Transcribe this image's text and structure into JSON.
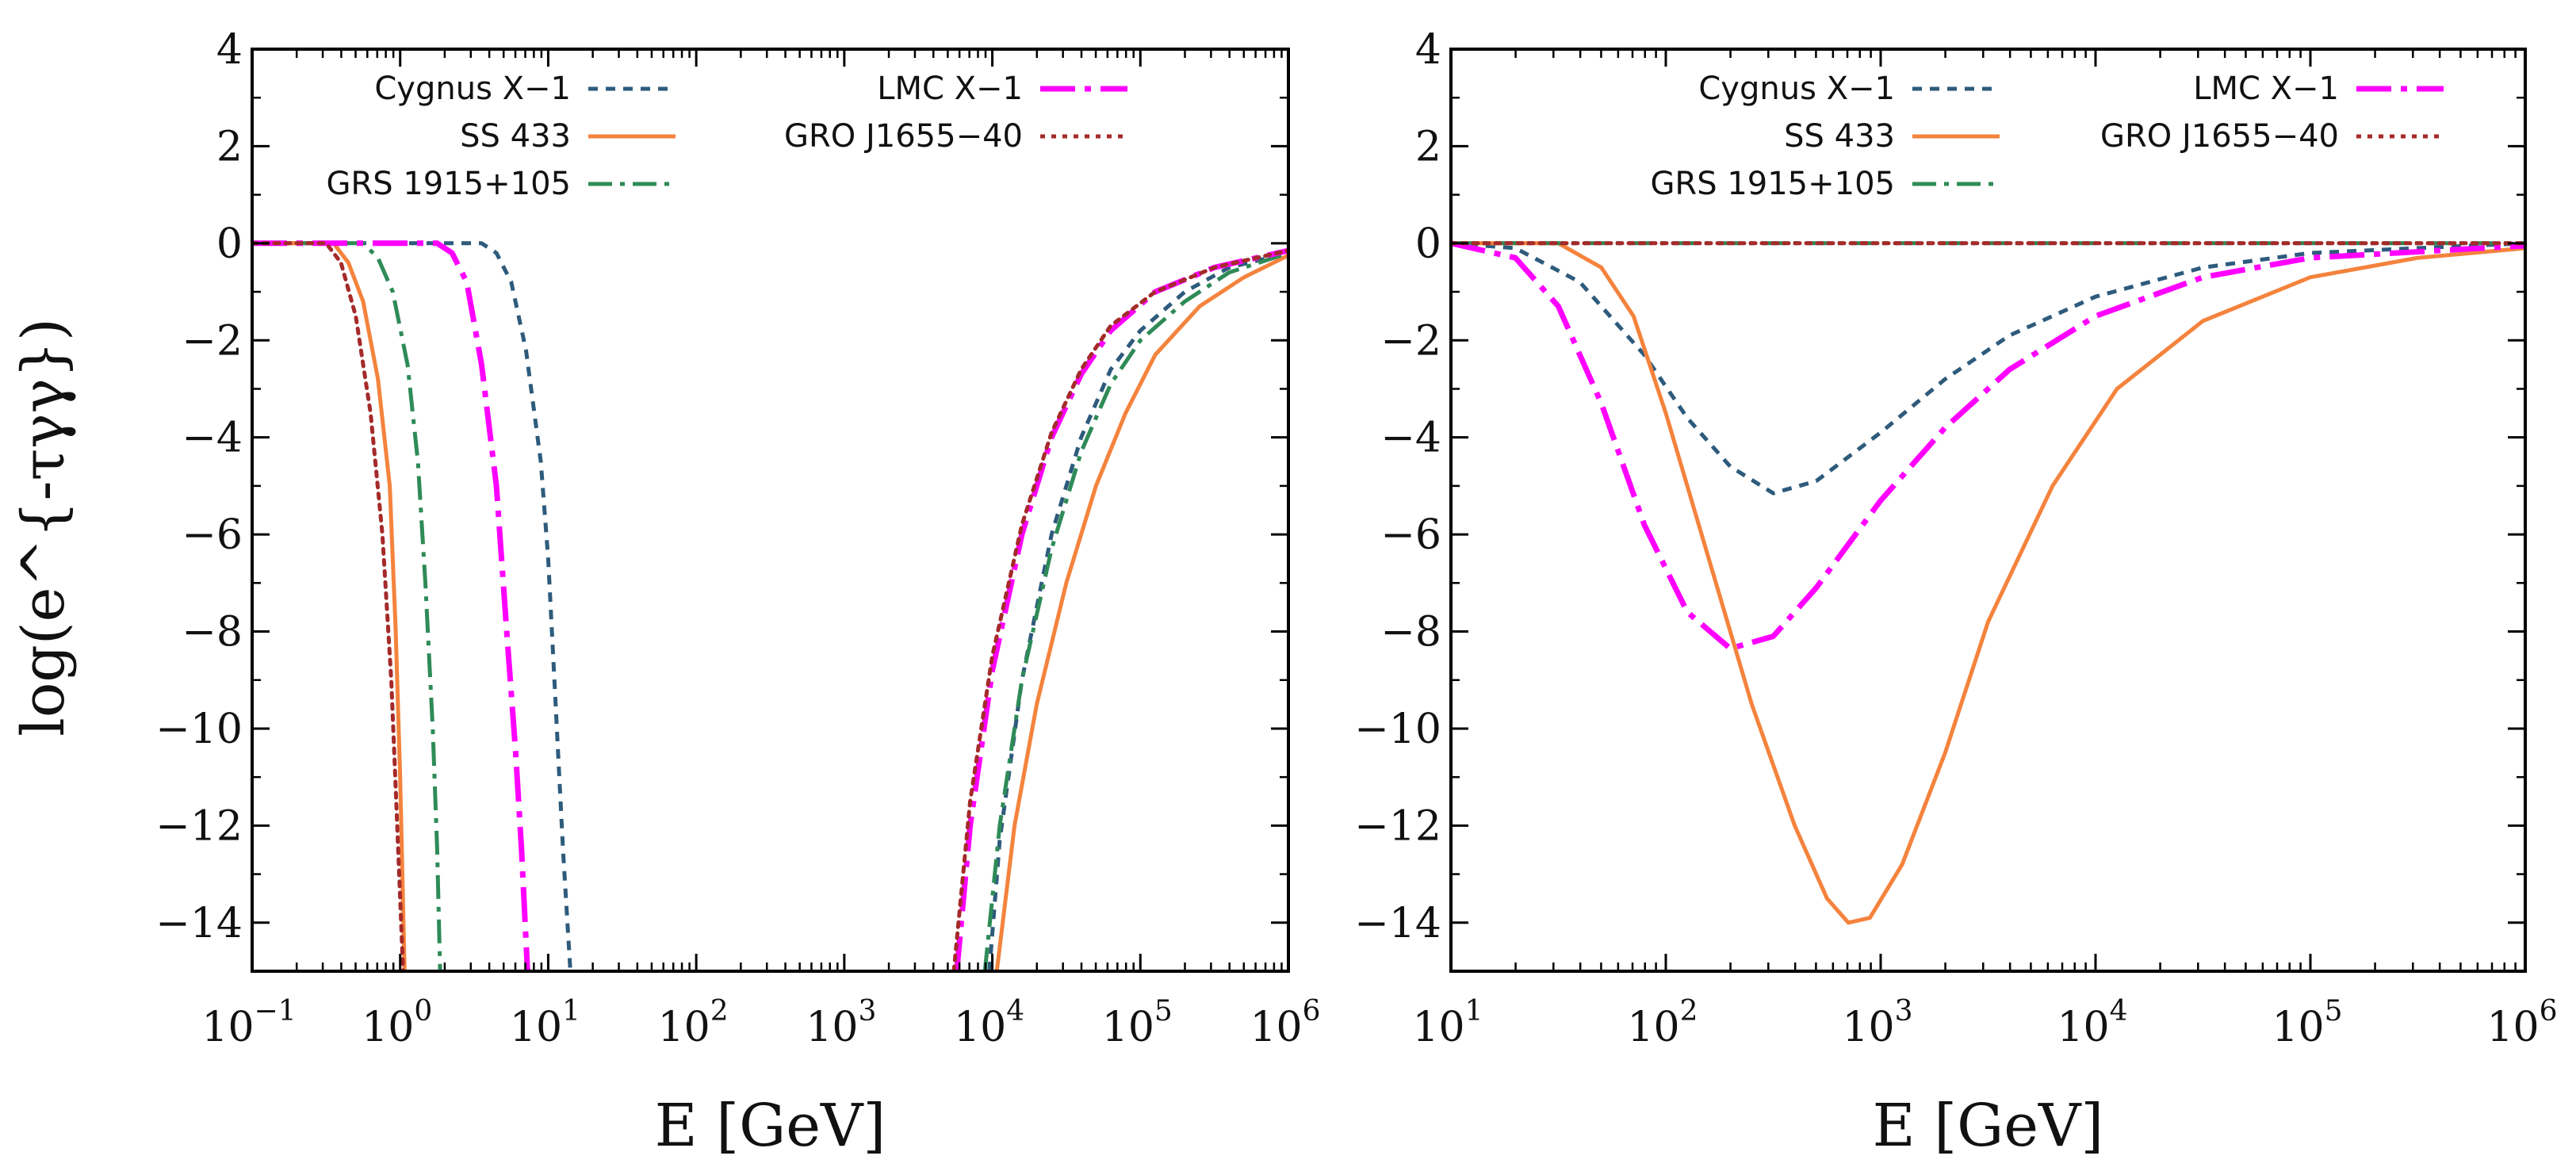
{
  "y_axis_label": "log(e^{-τγγ})",
  "colors": {
    "Cygnus X−1": "#2e5b7c",
    "SS 433": "#f4833d",
    "GRS 1915+105": "#2e8b57",
    "LMC X−1": "#ff00ff",
    "GRO J1655−40": "#a52a2a"
  },
  "chart_data": [
    {
      "type": "line",
      "panel": "left",
      "xlabel": "E [GeV]",
      "ylabel": "log(e^{-τγγ})",
      "xscale": "log",
      "xlim_exp": [
        -1,
        6
      ],
      "ylim": [
        -15,
        4
      ],
      "xtick_labels": [
        {
          "base": "10",
          "exp": "−1"
        },
        {
          "base": "10",
          "exp": "0"
        },
        {
          "base": "10",
          "exp": "1"
        },
        {
          "base": "10",
          "exp": "2"
        },
        {
          "base": "10",
          "exp": "3"
        },
        {
          "base": "10",
          "exp": "4"
        },
        {
          "base": "10",
          "exp": "5"
        },
        {
          "base": "10",
          "exp": "6"
        }
      ],
      "ytick_labels": [
        "4",
        "2",
        "0",
        "−2",
        "−4",
        "−6",
        "−8",
        "−10",
        "−12",
        "−14"
      ],
      "legend": {
        "placement": "top",
        "entries": [
          "Cygnus X−1",
          "SS 433",
          "GRS 1915+105",
          "LMC X−1",
          "GRO J1655−40"
        ]
      },
      "series": [
        {
          "name": "Cygnus X−1",
          "style": "dashed",
          "points": [
            [
              -1,
              0
            ],
            [
              0.55,
              0
            ],
            [
              0.65,
              -0.2
            ],
            [
              0.75,
              -0.8
            ],
            [
              0.85,
              -2.2
            ],
            [
              0.95,
              -4.5
            ],
            [
              1.0,
              -6.5
            ],
            [
              1.05,
              -9.5
            ],
            [
              1.1,
              -12.5
            ],
            [
              1.15,
              -15
            ]
          ]
        },
        {
          "name": "Cygnus X−1",
          "style": "dashed",
          "points": [
            [
              3.98,
              -15
            ],
            [
              4.05,
              -12.3
            ],
            [
              4.2,
              -9
            ],
            [
              4.4,
              -6
            ],
            [
              4.6,
              -4
            ],
            [
              4.8,
              -2.6
            ],
            [
              5.0,
              -1.8
            ],
            [
              5.3,
              -1
            ],
            [
              5.6,
              -0.5
            ],
            [
              6,
              -0.2
            ]
          ]
        },
        {
          "name": "SS 433",
          "style": "solid",
          "points": [
            [
              -1,
              0
            ],
            [
              -0.45,
              0
            ],
            [
              -0.35,
              -0.4
            ],
            [
              -0.25,
              -1.2
            ],
            [
              -0.15,
              -2.8
            ],
            [
              -0.07,
              -5
            ],
            [
              -0.03,
              -8
            ],
            [
              0,
              -11
            ],
            [
              0.03,
              -15
            ]
          ]
        },
        {
          "name": "SS 433",
          "style": "solid",
          "points": [
            [
              4.03,
              -15
            ],
            [
              4.15,
              -12
            ],
            [
              4.3,
              -9.5
            ],
            [
              4.5,
              -7
            ],
            [
              4.7,
              -5
            ],
            [
              4.9,
              -3.5
            ],
            [
              5.1,
              -2.3
            ],
            [
              5.4,
              -1.3
            ],
            [
              5.7,
              -0.7
            ],
            [
              6,
              -0.25
            ]
          ]
        },
        {
          "name": "GRS 1915+105",
          "style": "dashdot",
          "points": [
            [
              -1,
              0
            ],
            [
              -0.25,
              0
            ],
            [
              -0.15,
              -0.3
            ],
            [
              -0.05,
              -1
            ],
            [
              0.05,
              -2.5
            ],
            [
              0.12,
              -4.5
            ],
            [
              0.17,
              -7
            ],
            [
              0.22,
              -10
            ],
            [
              0.25,
              -12.5
            ],
            [
              0.27,
              -15
            ]
          ]
        },
        {
          "name": "GRS 1915+105",
          "style": "dashdot",
          "points": [
            [
              3.95,
              -15
            ],
            [
              4.05,
              -12
            ],
            [
              4.2,
              -9
            ],
            [
              4.4,
              -6.3
            ],
            [
              4.6,
              -4.3
            ],
            [
              4.8,
              -2.9
            ],
            [
              5.0,
              -2
            ],
            [
              5.3,
              -1.2
            ],
            [
              5.6,
              -0.6
            ],
            [
              6,
              -0.2
            ]
          ]
        },
        {
          "name": "LMC X−1",
          "style": "longdashdot",
          "points": [
            [
              -1,
              0
            ],
            [
              0.25,
              0
            ],
            [
              0.35,
              -0.2
            ],
            [
              0.45,
              -0.8
            ],
            [
              0.55,
              -2.5
            ],
            [
              0.65,
              -5
            ],
            [
              0.72,
              -8
            ],
            [
              0.78,
              -10.5
            ],
            [
              0.82,
              -12.5
            ],
            [
              0.86,
              -15
            ]
          ]
        },
        {
          "name": "LMC X−1",
          "style": "longdashdot",
          "points": [
            [
              3.76,
              -15
            ],
            [
              3.85,
              -12
            ],
            [
              4.0,
              -8.8
            ],
            [
              4.2,
              -6
            ],
            [
              4.4,
              -4
            ],
            [
              4.6,
              -2.7
            ],
            [
              4.8,
              -1.8
            ],
            [
              5.1,
              -1
            ],
            [
              5.5,
              -0.5
            ],
            [
              6,
              -0.15
            ]
          ]
        },
        {
          "name": "GRO J1655−40",
          "style": "dotted",
          "points": [
            [
              -1,
              0
            ],
            [
              -0.5,
              0
            ],
            [
              -0.4,
              -0.4
            ],
            [
              -0.3,
              -1.5
            ],
            [
              -0.2,
              -3.5
            ],
            [
              -0.12,
              -6
            ],
            [
              -0.06,
              -9
            ],
            [
              -0.02,
              -12
            ],
            [
              0.02,
              -15
            ]
          ]
        },
        {
          "name": "GRO J1655−40",
          "style": "dotted",
          "points": [
            [
              3.74,
              -15
            ],
            [
              3.85,
              -11.5
            ],
            [
              4.0,
              -8.5
            ],
            [
              4.2,
              -5.8
            ],
            [
              4.4,
              -3.9
            ],
            [
              4.6,
              -2.6
            ],
            [
              4.8,
              -1.7
            ],
            [
              5.1,
              -1
            ],
            [
              5.5,
              -0.5
            ],
            [
              6,
              -0.15
            ]
          ]
        }
      ]
    },
    {
      "type": "line",
      "panel": "right",
      "xlabel": "E [GeV]",
      "ylabel": "",
      "xscale": "log",
      "xlim_exp": [
        1,
        6
      ],
      "ylim": [
        -15,
        4
      ],
      "xtick_labels": [
        {
          "base": "10",
          "exp": "1"
        },
        {
          "base": "10",
          "exp": "2"
        },
        {
          "base": "10",
          "exp": "3"
        },
        {
          "base": "10",
          "exp": "4"
        },
        {
          "base": "10",
          "exp": "5"
        },
        {
          "base": "10",
          "exp": "6"
        }
      ],
      "ytick_labels": [
        "4",
        "2",
        "0",
        "−2",
        "−4",
        "−6",
        "−8",
        "−10",
        "−12",
        "−14"
      ],
      "legend": {
        "placement": "top",
        "entries": [
          "Cygnus X−1",
          "SS 433",
          "GRS 1915+105",
          "LMC X−1",
          "GRO J1655−40"
        ]
      },
      "series": [
        {
          "name": "Cygnus X−1",
          "style": "dashed",
          "points": [
            [
              1,
              0
            ],
            [
              1.3,
              -0.1
            ],
            [
              1.6,
              -0.8
            ],
            [
              1.9,
              -2.3
            ],
            [
              2.1,
              -3.6
            ],
            [
              2.3,
              -4.6
            ],
            [
              2.5,
              -5.15
            ],
            [
              2.7,
              -4.9
            ],
            [
              3.0,
              -3.9
            ],
            [
              3.3,
              -2.8
            ],
            [
              3.6,
              -1.9
            ],
            [
              4.0,
              -1.1
            ],
            [
              4.5,
              -0.5
            ],
            [
              5.0,
              -0.2
            ],
            [
              6,
              0
            ]
          ]
        },
        {
          "name": "SS 433",
          "style": "solid",
          "points": [
            [
              1,
              0
            ],
            [
              1.5,
              0
            ],
            [
              1.7,
              -0.5
            ],
            [
              1.85,
              -1.5
            ],
            [
              2.0,
              -3.5
            ],
            [
              2.2,
              -6.5
            ],
            [
              2.4,
              -9.5
            ],
            [
              2.6,
              -12
            ],
            [
              2.75,
              -13.5
            ],
            [
              2.85,
              -14
            ],
            [
              2.95,
              -13.9
            ],
            [
              3.1,
              -12.8
            ],
            [
              3.3,
              -10.5
            ],
            [
              3.5,
              -7.8
            ],
            [
              3.8,
              -5
            ],
            [
              4.1,
              -3
            ],
            [
              4.5,
              -1.6
            ],
            [
              5.0,
              -0.7
            ],
            [
              5.5,
              -0.3
            ],
            [
              6,
              -0.1
            ]
          ]
        },
        {
          "name": "GRS 1915+105",
          "style": "dashdot",
          "points": [
            [
              1,
              0
            ],
            [
              6,
              0
            ]
          ]
        },
        {
          "name": "LMC X−1",
          "style": "longdashdot",
          "points": [
            [
              1,
              0
            ],
            [
              1.3,
              -0.3
            ],
            [
              1.5,
              -1.3
            ],
            [
              1.7,
              -3.3
            ],
            [
              1.9,
              -5.8
            ],
            [
              2.1,
              -7.6
            ],
            [
              2.3,
              -8.35
            ],
            [
              2.5,
              -8.1
            ],
            [
              2.7,
              -7.1
            ],
            [
              3.0,
              -5.3
            ],
            [
              3.3,
              -3.8
            ],
            [
              3.6,
              -2.6
            ],
            [
              4.0,
              -1.5
            ],
            [
              4.5,
              -0.7
            ],
            [
              5.0,
              -0.3
            ],
            [
              6,
              -0.05
            ]
          ]
        },
        {
          "name": "GRO J1655−40",
          "style": "dotted",
          "points": [
            [
              1,
              0
            ],
            [
              6,
              0
            ]
          ]
        }
      ]
    }
  ]
}
